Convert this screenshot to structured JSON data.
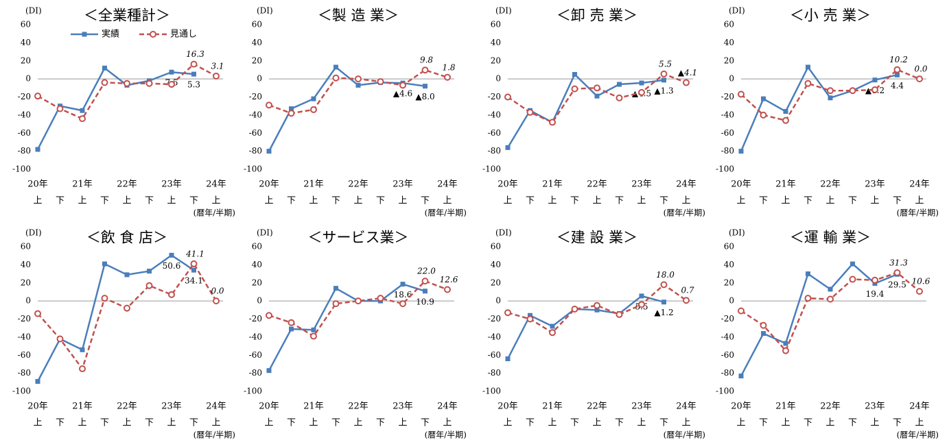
{
  "chart_data": [
    {
      "type": "line",
      "title": "＜全業種計＞",
      "y_label": "(DI)",
      "x_label": "(暦年/半期)",
      "legend": true,
      "categories": [
        "上",
        "下",
        "上",
        "下",
        "上",
        "下",
        "上",
        "下",
        "上"
      ],
      "x_years": [
        "20年",
        null,
        "21年",
        null,
        "22年",
        null,
        "23年",
        null,
        "24年"
      ],
      "ylim": [
        -100,
        60
      ],
      "yticks": [
        -100,
        -80,
        -60,
        -40,
        -20,
        0,
        20,
        40,
        60
      ],
      "series": [
        {
          "name": "実績",
          "color": "#4a7ebb",
          "dashed": false,
          "marker": "square",
          "values": [
            -78,
            -30,
            -35,
            12,
            -7,
            -2,
            7.5,
            5.3,
            null
          ],
          "value_labels": [
            null,
            null,
            null,
            null,
            null,
            null,
            "7.5",
            "5.3",
            null
          ]
        },
        {
          "name": "見通し",
          "color": "#c0504d",
          "dashed": true,
          "marker": "circle",
          "values": [
            -19,
            -33,
            -44,
            -4,
            -5,
            -5,
            -6,
            16.3,
            3.1
          ],
          "value_labels": [
            null,
            null,
            null,
            null,
            null,
            null,
            null,
            "16.3",
            "3.1"
          ]
        }
      ]
    },
    {
      "type": "line",
      "title": "＜製 造 業＞",
      "y_label": "(DI)",
      "x_label": "(暦年/半期)",
      "legend": false,
      "categories": [
        "上",
        "下",
        "上",
        "下",
        "上",
        "下",
        "上",
        "下",
        "上"
      ],
      "x_years": [
        "20年",
        null,
        "21年",
        null,
        "22年",
        null,
        "23年",
        null,
        "24年"
      ],
      "ylim": [
        -100,
        60
      ],
      "yticks": [
        -100,
        -80,
        -60,
        -40,
        -20,
        0,
        20,
        40,
        60
      ],
      "series": [
        {
          "color": "#4a7ebb",
          "dashed": false,
          "marker": "square",
          "values": [
            -80,
            -33,
            -22,
            13,
            -7,
            -4,
            -4.6,
            -8.0,
            null
          ],
          "value_labels": [
            null,
            null,
            null,
            null,
            null,
            null,
            "▲4.6",
            "▲8.0",
            null
          ]
        },
        {
          "color": "#c0504d",
          "dashed": true,
          "marker": "circle",
          "values": [
            -29,
            -38,
            -34,
            1,
            0,
            -3,
            -7,
            9.8,
            1.8
          ],
          "value_labels": [
            null,
            null,
            null,
            null,
            null,
            null,
            null,
            "9.8",
            "1.8"
          ]
        }
      ]
    },
    {
      "type": "line",
      "title": "＜卸 売 業＞",
      "y_label": "(DI)",
      "x_label": "(暦年/半期)",
      "legend": false,
      "categories": [
        "上",
        "下",
        "上",
        "下",
        "上",
        "下",
        "上",
        "下",
        "上"
      ],
      "x_years": [
        "20年",
        null,
        "21年",
        null,
        "22年",
        null,
        "23年",
        null,
        "24年"
      ],
      "ylim": [
        -100,
        60
      ],
      "yticks": [
        -100,
        -80,
        -60,
        -40,
        -20,
        0,
        20,
        40,
        60
      ],
      "series": [
        {
          "color": "#4a7ebb",
          "dashed": false,
          "marker": "square",
          "values": [
            -76,
            -35,
            -48,
            5,
            -19,
            -6,
            -4.5,
            -1.3,
            null
          ],
          "value_labels": [
            null,
            null,
            null,
            null,
            null,
            null,
            "▲4.5",
            "▲1.3",
            null
          ]
        },
        {
          "color": "#c0504d",
          "dashed": true,
          "marker": "circle",
          "values": [
            -20,
            -37,
            -48,
            -11,
            -10,
            -21,
            -15,
            5.5,
            -4.1
          ],
          "value_labels": [
            null,
            null,
            null,
            null,
            null,
            null,
            null,
            "5.5",
            "▲4.1"
          ]
        }
      ]
    },
    {
      "type": "line",
      "title": "＜小 売 業＞",
      "y_label": "(DI)",
      "x_label": "(暦年/半期)",
      "legend": false,
      "categories": [
        "上",
        "下",
        "上",
        "下",
        "上",
        "下",
        "上",
        "下",
        "上"
      ],
      "x_years": [
        "20年",
        null,
        "21年",
        null,
        "22年",
        null,
        "23年",
        null,
        "24年"
      ],
      "ylim": [
        -100,
        60
      ],
      "yticks": [
        -100,
        -80,
        -60,
        -40,
        -20,
        0,
        20,
        40,
        60
      ],
      "series": [
        {
          "color": "#4a7ebb",
          "dashed": false,
          "marker": "square",
          "values": [
            -80,
            -22,
            -36,
            13,
            -21,
            -13,
            -1.2,
            4.4,
            null
          ],
          "value_labels": [
            null,
            null,
            null,
            null,
            null,
            null,
            "▲1.2",
            "4.4",
            null
          ]
        },
        {
          "color": "#c0504d",
          "dashed": true,
          "marker": "circle",
          "values": [
            -17,
            -40,
            -46,
            -5,
            -13,
            -13,
            -12,
            10.2,
            0
          ],
          "value_labels": [
            null,
            null,
            null,
            null,
            null,
            null,
            null,
            "10.2",
            "0.0"
          ]
        }
      ]
    },
    {
      "type": "line",
      "title": "＜飲 食 店＞",
      "y_label": "(DI)",
      "x_label": "(暦年/半期)",
      "legend": false,
      "categories": [
        "上",
        "下",
        "上",
        "下",
        "上",
        "下",
        "上",
        "下",
        "上"
      ],
      "x_years": [
        "20年",
        null,
        "21年",
        null,
        "22年",
        null,
        "23年",
        null,
        "24年"
      ],
      "ylim": [
        -100,
        60
      ],
      "yticks": [
        -100,
        -80,
        -60,
        -40,
        -20,
        0,
        20,
        40,
        60
      ],
      "series": [
        {
          "color": "#4a7ebb",
          "dashed": false,
          "marker": "square",
          "values": [
            -89,
            -42,
            -54,
            41,
            29,
            33,
            50.6,
            34.1,
            null
          ],
          "value_labels": [
            null,
            null,
            null,
            null,
            null,
            null,
            "50.6",
            "34.1",
            null
          ]
        },
        {
          "color": "#c0504d",
          "dashed": true,
          "marker": "circle",
          "values": [
            -14,
            -42,
            -75,
            3,
            -8,
            17,
            7,
            41.1,
            0
          ],
          "value_labels": [
            null,
            null,
            null,
            null,
            null,
            null,
            null,
            "41.1",
            "0.0"
          ]
        }
      ]
    },
    {
      "type": "line",
      "title": "＜サービス業＞",
      "y_label": "(DI)",
      "x_label": "(暦年/半期)",
      "legend": false,
      "categories": [
        "上",
        "下",
        "上",
        "下",
        "上",
        "下",
        "上",
        "下",
        "上"
      ],
      "x_years": [
        "20年",
        null,
        "21年",
        null,
        "22年",
        null,
        "23年",
        null,
        "24年"
      ],
      "ylim": [
        -100,
        60
      ],
      "yticks": [
        -100,
        -80,
        -60,
        -40,
        -20,
        0,
        20,
        40,
        60
      ],
      "series": [
        {
          "color": "#4a7ebb",
          "dashed": false,
          "marker": "square",
          "values": [
            -77,
            -31,
            -32,
            14,
            0,
            0,
            18.6,
            10.9,
            null
          ],
          "value_labels": [
            null,
            null,
            null,
            null,
            null,
            null,
            "18.6",
            "10.9",
            null
          ]
        },
        {
          "color": "#c0504d",
          "dashed": true,
          "marker": "circle",
          "values": [
            -16,
            -24,
            -39,
            -3,
            0,
            3,
            -3,
            22.0,
            12.6
          ],
          "value_labels": [
            null,
            null,
            null,
            null,
            null,
            null,
            null,
            "22.0",
            "12.6"
          ]
        }
      ]
    },
    {
      "type": "line",
      "title": "＜建 設 業＞",
      "y_label": "(DI)",
      "x_label": "(暦年/半期)",
      "legend": false,
      "categories": [
        "上",
        "下",
        "上",
        "下",
        "上",
        "下",
        "上",
        "下",
        "上"
      ],
      "x_years": [
        "20年",
        null,
        "21年",
        null,
        "22年",
        null,
        "23年",
        null,
        "24年"
      ],
      "ylim": [
        -100,
        60
      ],
      "yticks": [
        -100,
        -80,
        -60,
        -40,
        -20,
        0,
        20,
        40,
        60
      ],
      "series": [
        {
          "color": "#4a7ebb",
          "dashed": false,
          "marker": "square",
          "values": [
            -64,
            -16,
            -28,
            -9,
            -10,
            -14,
            5.5,
            -1.2,
            null
          ],
          "value_labels": [
            null,
            null,
            null,
            null,
            null,
            null,
            "5.5",
            "▲1.2",
            null
          ]
        },
        {
          "color": "#c0504d",
          "dashed": true,
          "marker": "circle",
          "values": [
            -13,
            -20,
            -35,
            -9,
            -5,
            -15,
            -4,
            18.0,
            0.7
          ],
          "value_labels": [
            null,
            null,
            null,
            null,
            null,
            null,
            null,
            "18.0",
            "0.7"
          ]
        }
      ]
    },
    {
      "type": "line",
      "title": "＜運 輸 業＞",
      "y_label": "(DI)",
      "x_label": "(暦年/半期)",
      "legend": false,
      "categories": [
        "上",
        "下",
        "上",
        "下",
        "上",
        "下",
        "上",
        "下",
        "上"
      ],
      "x_years": [
        "20年",
        null,
        "21年",
        null,
        "22年",
        null,
        "23年",
        null,
        "24年"
      ],
      "ylim": [
        -100,
        60
      ],
      "yticks": [
        -100,
        -80,
        -60,
        -40,
        -20,
        0,
        20,
        40,
        60
      ],
      "series": [
        {
          "color": "#4a7ebb",
          "dashed": false,
          "marker": "square",
          "values": [
            -83,
            -36,
            -47,
            30,
            13,
            41,
            19.4,
            29.5,
            null
          ],
          "value_labels": [
            null,
            null,
            null,
            null,
            null,
            null,
            "19.4",
            "29.5",
            null
          ]
        },
        {
          "color": "#c0504d",
          "dashed": true,
          "marker": "circle",
          "values": [
            -11,
            -27,
            -55,
            3,
            2,
            24,
            23,
            31.3,
            10.6
          ],
          "value_labels": [
            null,
            null,
            null,
            null,
            null,
            null,
            null,
            "31.3",
            "10.6"
          ]
        }
      ]
    }
  ]
}
